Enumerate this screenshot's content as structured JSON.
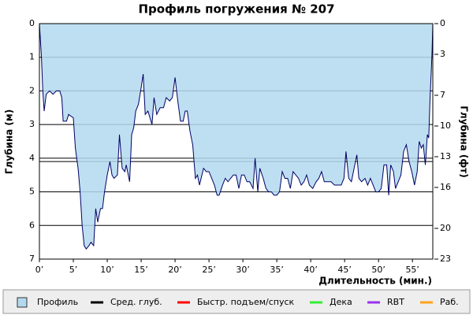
{
  "chart_data": {
    "type": "area",
    "title": "Профиль погружения № 207",
    "x_label": "Длительность (мин.)",
    "y_label": "Глубина (м)",
    "y2_label": "Глубина (фт)",
    "y_inverted": true,
    "xlim": [
      0,
      58
    ],
    "xticks": [
      {
        "value": 0,
        "label": "0’"
      },
      {
        "value": 5,
        "label": "5’"
      },
      {
        "value": 10,
        "label": "10’"
      },
      {
        "value": 15,
        "label": "15’"
      },
      {
        "value": 20,
        "label": "20’"
      },
      {
        "value": 25,
        "label": "25’"
      },
      {
        "value": 30,
        "label": "30’"
      },
      {
        "value": 35,
        "label": "35’"
      },
      {
        "value": 40,
        "label": "40’"
      },
      {
        "value": 45,
        "label": "45’"
      },
      {
        "value": 50,
        "label": "50’"
      },
      {
        "value": 55,
        "label": "55’"
      }
    ],
    "ylim": [
      0,
      7
    ],
    "yticks": [
      0,
      1,
      2,
      3,
      4,
      5,
      6,
      7
    ],
    "y2lim": [
      0,
      23
    ],
    "y2ticks": [
      0,
      3,
      7,
      10,
      13,
      16,
      20,
      23
    ],
    "grid": true,
    "x": [
      0,
      0.3,
      0.5,
      0.7,
      1,
      1.5,
      2,
      2.5,
      3,
      3.3,
      3.5,
      4,
      4.3,
      5,
      5.3,
      5.7,
      6,
      6.3,
      6.6,
      6.9,
      7.3,
      7.6,
      8,
      8.3,
      8.6,
      9,
      9.3,
      9.6,
      10,
      10.4,
      10.7,
      11,
      11.5,
      11.8,
      12.2,
      12.6,
      12.8,
      13.3,
      13.6,
      13.9,
      14.2,
      14.6,
      15,
      15.3,
      15.6,
      16,
      16.6,
      16.9,
      17.3,
      17.8,
      18.3,
      18.7,
      19.2,
      19.6,
      20,
      20.4,
      20.8,
      21.2,
      21.5,
      21.8,
      22.2,
      22.6,
      23,
      23.3,
      23.6,
      24.2,
      24.6,
      25,
      25.4,
      25.8,
      26.2,
      26.5,
      27,
      27.4,
      27.8,
      28.2,
      28.6,
      29,
      29.4,
      29.8,
      30.2,
      30.6,
      31,
      31.5,
      31.8,
      32.2,
      32.5,
      33,
      33.4,
      33.8,
      34.2,
      34.6,
      35,
      35.4,
      35.8,
      36.2,
      36.6,
      37,
      37.4,
      37.8,
      38.2,
      38.6,
      39,
      39.4,
      39.8,
      40.3,
      40.8,
      41.2,
      41.6,
      42,
      42.5,
      43,
      43.5,
      44,
      44.5,
      44.9,
      45.2,
      45.6,
      46,
      46.4,
      46.8,
      47.1,
      47.5,
      48,
      48.4,
      48.8,
      49.2,
      49.6,
      50,
      50.4,
      50.8,
      51.2,
      51.5,
      51.8,
      52.2,
      52.5,
      52.9,
      53.3,
      53.7,
      54.1,
      54.5,
      54.9,
      55.3,
      55.7,
      56,
      56.3,
      56.6,
      56.9,
      57.2,
      57.4,
      57.6,
      57.8,
      57.9,
      58
    ],
    "series": [
      {
        "name": "Профиль",
        "color": "#b3d9ee",
        "line_color": "#000066",
        "values": [
          0,
          1.0,
          2.0,
          2.6,
          2.1,
          2.0,
          2.1,
          2.0,
          2.0,
          2.2,
          2.9,
          2.9,
          2.7,
          2.8,
          3.7,
          4.3,
          5.0,
          6.0,
          6.6,
          6.7,
          6.6,
          6.5,
          6.6,
          5.5,
          5.9,
          5.5,
          5.5,
          5.0,
          4.5,
          4.1,
          4.5,
          4.6,
          4.5,
          3.3,
          4.3,
          4.4,
          4.2,
          4.7,
          3.3,
          3.1,
          2.6,
          2.4,
          1.9,
          1.5,
          2.7,
          2.6,
          3.0,
          2.2,
          2.7,
          2.5,
          2.5,
          2.2,
          2.3,
          2.2,
          1.6,
          2.3,
          2.9,
          2.9,
          2.6,
          2.6,
          3.2,
          3.6,
          4.6,
          4.5,
          4.8,
          4.3,
          4.4,
          4.4,
          4.6,
          4.8,
          5.1,
          5.1,
          4.8,
          4.6,
          4.7,
          4.6,
          4.5,
          4.5,
          4.9,
          4.5,
          4.5,
          4.7,
          4.7,
          4.9,
          4.0,
          5.0,
          4.3,
          4.6,
          4.9,
          5.0,
          5.0,
          5.1,
          5.1,
          5.0,
          4.4,
          4.6,
          4.6,
          4.9,
          4.4,
          4.5,
          4.6,
          4.8,
          4.7,
          4.5,
          4.8,
          4.9,
          4.7,
          4.6,
          4.4,
          4.7,
          4.7,
          4.7,
          4.8,
          4.8,
          4.8,
          4.6,
          3.8,
          4.6,
          4.7,
          4.3,
          3.9,
          4.6,
          4.7,
          4.6,
          4.8,
          4.6,
          4.8,
          5.0,
          5.0,
          4.9,
          4.2,
          4.2,
          5.1,
          4.2,
          4.4,
          4.9,
          4.7,
          4.5,
          3.8,
          3.6,
          4.1,
          4.4,
          4.8,
          4.4,
          3.5,
          3.7,
          3.6,
          4.2,
          3.3,
          3.4,
          2.2,
          1.3,
          0.8,
          0
        ]
      }
    ],
    "avg_depth": {
      "name": "Сред. глуб.",
      "color": "#000000",
      "value": 4.1
    },
    "legend": [
      {
        "name": "Быстр. подъем/спуск",
        "color": "#ff0000"
      },
      {
        "name": "Дека",
        "color": "#33ee33"
      },
      {
        "name": "RBT",
        "color": "#9933ee"
      },
      {
        "name": "Раб.",
        "color": "#ffa31a"
      }
    ]
  }
}
